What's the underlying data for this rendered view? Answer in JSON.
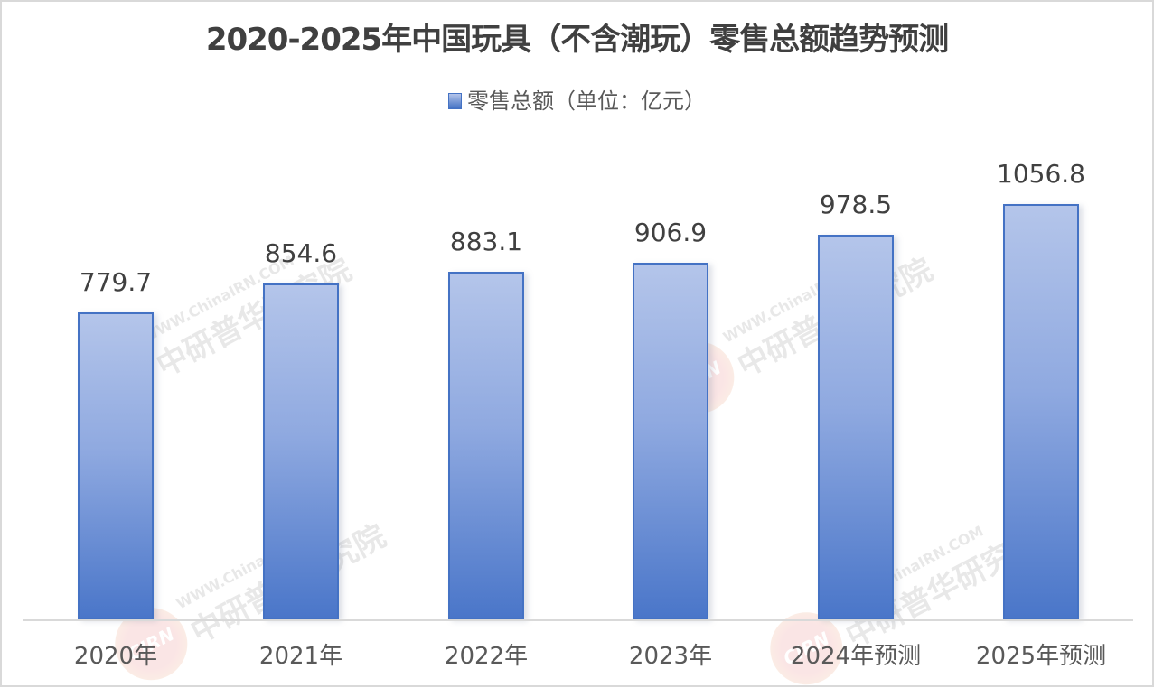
{
  "title": "2020-2025年中国玩具（不含潮玩）零售总额趋势预测",
  "legend": {
    "label": "零售总额（单位：亿元）",
    "color": "#4472c4"
  },
  "watermark": {
    "logo": "CIRN",
    "url": "WWW.ChinaIRN.COM",
    "name": "中研普华研究院"
  },
  "colors": {
    "bar_top": "#b4c5ea",
    "bar_bottom": "#4a76c9",
    "bar_border": "#4472c4",
    "axis": "#d9d9d9",
    "text": "#404040"
  },
  "chart_data": {
    "type": "bar",
    "title": "2020-2025年中国玩具（不含潮玩）零售总额趋势预测",
    "categories": [
      "2020年",
      "2021年",
      "2022年",
      "2023年",
      "2024年预测",
      "2025年预测"
    ],
    "series": [
      {
        "name": "零售总额（单位：亿元）",
        "values": [
          779.7,
          854.6,
          883.1,
          906.9,
          978.5,
          1056.8
        ]
      }
    ],
    "value_labels": [
      "779.7",
      "854.6",
      "883.1",
      "906.9",
      "978.5",
      "1056.8"
    ],
    "xlabel": "",
    "ylabel": "",
    "ylim": [
      0,
      1225
    ],
    "grid": false,
    "legend_position": "top",
    "y_axis_visible": false
  }
}
